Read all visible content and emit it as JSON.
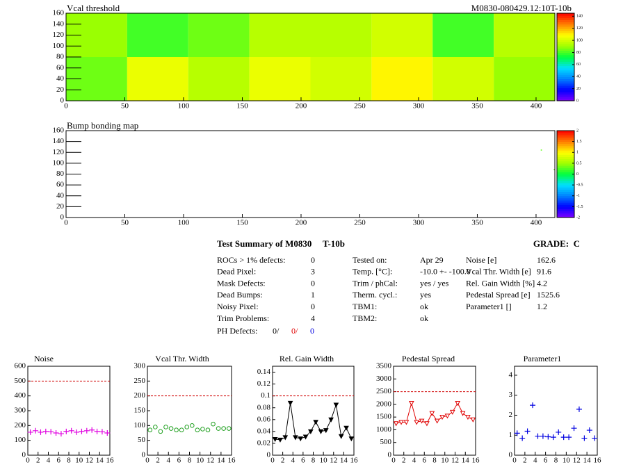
{
  "chart_data": [
    {
      "type": "heatmap",
      "title": "Vcal threshold",
      "subtitle": "M0830-080429.12:10T-10b",
      "xbins": [
        0,
        52,
        104,
        156,
        208,
        260,
        312,
        364,
        416
      ],
      "ybins": [
        0,
        80,
        160
      ],
      "values": [
        [
          85,
          105,
          95,
          105,
          100,
          110,
          100,
          90
        ],
        [
          90,
          80,
          85,
          95,
          95,
          100,
          80,
          95
        ]
      ],
      "xlim": [
        0,
        416
      ],
      "xticks": [
        0,
        50,
        100,
        150,
        200,
        250,
        300,
        350,
        400
      ],
      "ylim": [
        0,
        160
      ],
      "yticks": [
        0,
        20,
        40,
        60,
        80,
        100,
        120,
        140,
        160
      ],
      "zlim": [
        0,
        145
      ],
      "zticks": [
        0,
        20,
        40,
        60,
        80,
        100,
        120,
        140
      ],
      "palette": [
        "#8000ff",
        "#0000ff",
        "#0080ff",
        "#00e0ff",
        "#00ff40",
        "#a0ff00",
        "#ffff00",
        "#ff8000",
        "#ff0000"
      ]
    },
    {
      "type": "heatmap",
      "title": "Bump bonding map",
      "x": [
        404,
        415
      ],
      "y": [
        124,
        88
      ],
      "values": [
        0.3,
        0.3
      ],
      "xlim": [
        0,
        416
      ],
      "xticks": [
        0,
        50,
        100,
        150,
        200,
        250,
        300,
        350,
        400
      ],
      "ylim": [
        0,
        160
      ],
      "yticks": [
        0,
        20,
        40,
        60,
        80,
        100,
        120,
        140,
        160
      ],
      "zlim": [
        -2,
        2
      ],
      "zticks": [
        -2,
        -1.5,
        -1,
        -0.5,
        0,
        0.5,
        1,
        1.5,
        2
      ],
      "palette": [
        "#8000ff",
        "#0000ff",
        "#0080ff",
        "#00e0ff",
        "#00ff40",
        "#a0ff00",
        "#ffff00",
        "#ff8000",
        "#ff0000"
      ]
    },
    {
      "type": "scatter",
      "title": "Noise",
      "color": "#e000e0",
      "marker": "cross",
      "x": [
        0.5,
        1.5,
        2.5,
        3.5,
        4.5,
        5.5,
        6.5,
        7.5,
        8.5,
        9.5,
        10.5,
        11.5,
        12.5,
        13.5,
        14.5,
        15.5
      ],
      "values": [
        155,
        165,
        155,
        160,
        158,
        150,
        145,
        160,
        165,
        155,
        160,
        165,
        170,
        160,
        158,
        150
      ],
      "reference": 500,
      "xlim": [
        0,
        16
      ],
      "xticks": [
        0,
        2,
        4,
        6,
        8,
        10,
        12,
        14,
        16
      ],
      "ylim": [
        0,
        600
      ],
      "yticks": [
        0,
        100,
        200,
        300,
        400,
        500,
        600
      ]
    },
    {
      "type": "scatter",
      "title": "Vcal Thr. Width",
      "color": "#20a020",
      "marker": "circle",
      "x": [
        0.5,
        1.5,
        2.5,
        3.5,
        4.5,
        5.5,
        6.5,
        7.5,
        8.5,
        9.5,
        10.5,
        11.5,
        12.5,
        13.5,
        14.5,
        15.5
      ],
      "values": [
        85,
        95,
        80,
        95,
        90,
        85,
        85,
        95,
        100,
        85,
        88,
        85,
        105,
        90,
        90,
        90
      ],
      "reference": 200,
      "xlim": [
        0,
        16
      ],
      "xticks": [
        0,
        2,
        4,
        6,
        8,
        10,
        12,
        14,
        16
      ],
      "ylim": [
        0,
        300
      ],
      "yticks": [
        0,
        50,
        100,
        150,
        200,
        250,
        300
      ]
    },
    {
      "type": "line",
      "title": "Rel. Gain Width",
      "color": "#000000",
      "marker": "triangle-filled",
      "x": [
        0.5,
        1.5,
        2.5,
        3.5,
        4.5,
        5.5,
        6.5,
        7.5,
        8.5,
        9.5,
        10.5,
        11.5,
        12.5,
        13.5,
        14.5,
        15.5
      ],
      "values": [
        0.027,
        0.026,
        0.03,
        0.088,
        0.03,
        0.028,
        0.031,
        0.04,
        0.056,
        0.04,
        0.042,
        0.06,
        0.085,
        0.032,
        0.046,
        0.028
      ],
      "reference": 0.1,
      "xlim": [
        0,
        16
      ],
      "xticks": [
        0,
        2,
        4,
        6,
        8,
        10,
        12,
        14,
        16
      ],
      "ylim": [
        0,
        0.15
      ],
      "yticks": [
        0,
        0.02,
        0.04,
        0.06,
        0.08,
        0.1,
        0.12,
        0.14
      ]
    },
    {
      "type": "line",
      "title": "Pedestal Spread",
      "color": "#e00000",
      "marker": "triangle-open",
      "x": [
        0.5,
        1.5,
        2.5,
        3.5,
        4.5,
        5.5,
        6.5,
        7.5,
        8.5,
        9.5,
        10.5,
        11.5,
        12.5,
        13.5,
        14.5,
        15.5
      ],
      "values": [
        1250,
        1300,
        1300,
        2050,
        1300,
        1350,
        1250,
        1650,
        1350,
        1500,
        1550,
        1700,
        2050,
        1650,
        1500,
        1400
      ],
      "reference": 2500,
      "xlim": [
        0,
        16
      ],
      "xticks": [
        0,
        2,
        4,
        6,
        8,
        10,
        12,
        14,
        16
      ],
      "ylim": [
        0,
        3500
      ],
      "yticks": [
        0,
        500,
        1000,
        1500,
        2000,
        2500,
        3000,
        3500
      ]
    },
    {
      "type": "scatter",
      "title": "Parameter1",
      "color": "#0000e0",
      "marker": "cross",
      "x": [
        0.5,
        1.5,
        2.5,
        3.5,
        4.5,
        5.5,
        6.5,
        7.5,
        8.5,
        9.5,
        10.5,
        11.5,
        12.5,
        13.5,
        14.5,
        15.5
      ],
      "values": [
        1.1,
        0.85,
        1.2,
        2.5,
        0.95,
        0.95,
        0.92,
        0.9,
        1.15,
        0.9,
        0.9,
        1.35,
        2.3,
        0.85,
        1.25,
        0.85
      ],
      "xlim": [
        0,
        16
      ],
      "xticks": [
        0,
        2,
        4,
        6,
        8,
        10,
        12,
        14,
        16
      ],
      "ylim": [
        0,
        4.45
      ],
      "yticks": [
        0,
        1,
        2,
        3,
        4
      ]
    }
  ],
  "summary": {
    "title": "Test Summary of M0830",
    "module_type": "T-10b",
    "grade": "GRADE:  C",
    "defects": [
      {
        "label": "ROCs > 1% defects:",
        "value": "0"
      },
      {
        "label": "Dead Pixel:",
        "value": "3"
      },
      {
        "label": "Mask Defects:",
        "value": "0"
      },
      {
        "label": "Dead Bumps:",
        "value": "1"
      },
      {
        "label": "Noisy Pixel:",
        "value": "0"
      },
      {
        "label": "Trim Problems:",
        "value": "4"
      }
    ],
    "ph_defects": {
      "label": "PH Defects:",
      "values": [
        "0/",
        "0/",
        "0"
      ]
    },
    "conditions": [
      {
        "label": "Tested on:",
        "value": "Apr 29"
      },
      {
        "label": "Temp. [°C]:",
        "value": "-10.0 +- -100.0"
      },
      {
        "label": "Trim / phCal:",
        "value": "yes / yes"
      },
      {
        "label": "Therm. cycl.:",
        "value": "yes"
      },
      {
        "label": "TBM1:",
        "value": "ok"
      },
      {
        "label": "TBM2:",
        "value": "ok"
      }
    ],
    "results": [
      {
        "label": "Noise [e]",
        "value": "162.6"
      },
      {
        "label": "Vcal Thr. Width [e]",
        "value": "91.6"
      },
      {
        "label": "Rel. Gain Width [%]",
        "value": "4.2"
      },
      {
        "label": "Pedestal Spread [e]",
        "value": "1525.6"
      },
      {
        "label": "Parameter1 []",
        "value": "1.2"
      }
    ]
  }
}
